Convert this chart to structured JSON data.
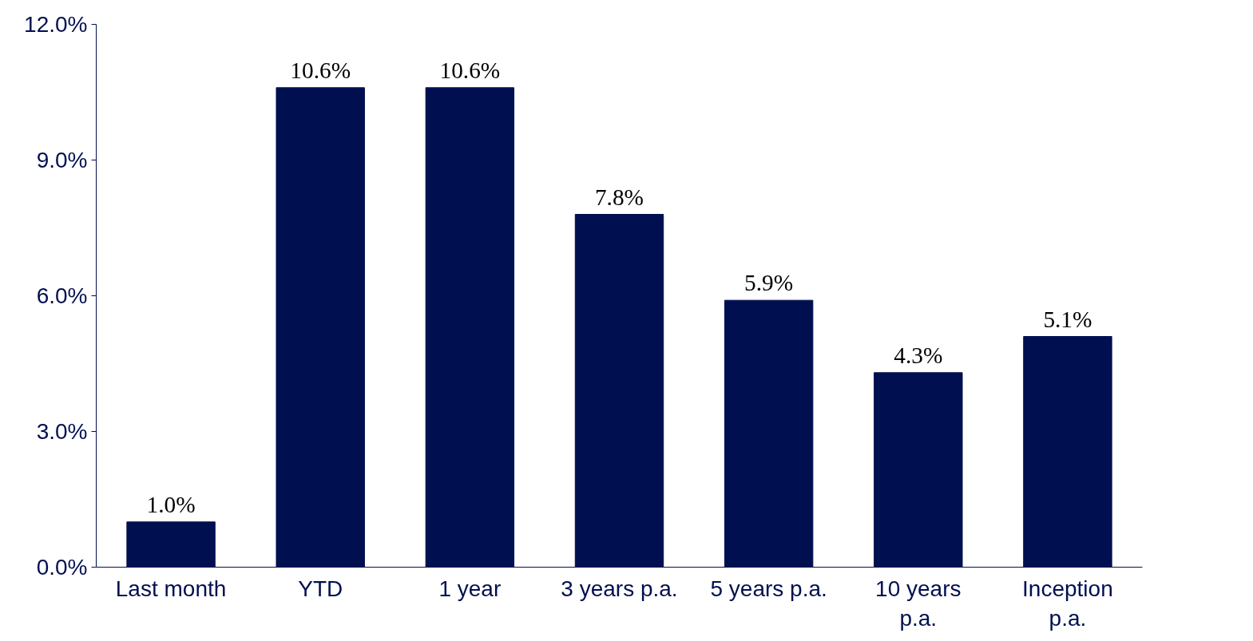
{
  "chart_data": {
    "type": "bar",
    "categories": [
      "Last month",
      "YTD",
      "1 year",
      "3 years p.a.",
      "5 years p.a.",
      "10 years p.a.",
      "Inception p.a."
    ],
    "values": [
      1.0,
      10.6,
      10.6,
      7.8,
      5.9,
      4.3,
      5.1
    ],
    "value_labels": [
      "1.0%",
      "10.6%",
      "10.6%",
      "7.8%",
      "5.9%",
      "4.3%",
      "5.1%"
    ],
    "color": "#000f50",
    "ylim": [
      0,
      12
    ],
    "yticks": [
      {
        "value": 0,
        "label": "0.0%"
      },
      {
        "value": 3,
        "label": "3.0%"
      },
      {
        "value": 6,
        "label": "6.0%"
      },
      {
        "value": 9,
        "label": "9.0%"
      },
      {
        "value": 12,
        "label": "12.0%"
      }
    ],
    "grid": false
  }
}
